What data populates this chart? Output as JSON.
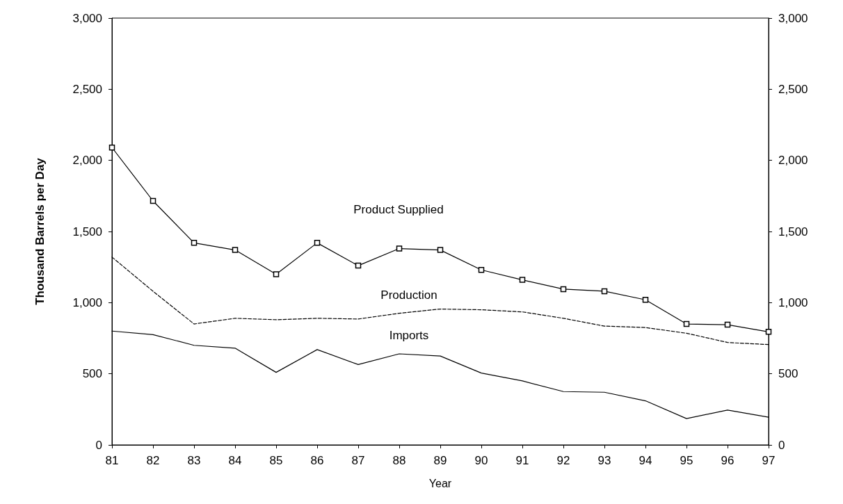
{
  "chart_data": {
    "type": "line",
    "xlabel": "Year",
    "ylabel": "Thousand Barrels per Day",
    "categories": [
      "81",
      "82",
      "83",
      "84",
      "85",
      "86",
      "87",
      "88",
      "89",
      "90",
      "91",
      "92",
      "93",
      "94",
      "95",
      "96",
      "97"
    ],
    "series": [
      {
        "name": "Product Supplied",
        "color": "#000000",
        "marker": "square",
        "line_style": "solid",
        "values": [
          2090,
          1715,
          1420,
          1370,
          1200,
          1420,
          1260,
          1380,
          1370,
          1230,
          1160,
          1095,
          1080,
          1020,
          850,
          845,
          795
        ]
      },
      {
        "name": "Production",
        "color": "#000000",
        "marker": "none",
        "line_style": "dashed",
        "values": [
          1320,
          1080,
          850,
          890,
          880,
          890,
          885,
          925,
          955,
          950,
          935,
          890,
          835,
          825,
          785,
          720,
          705
        ]
      },
      {
        "name": "Imports",
        "color": "#000000",
        "marker": "none",
        "line_style": "solid",
        "values": [
          800,
          775,
          700,
          680,
          510,
          670,
          565,
          640,
          625,
          505,
          450,
          375,
          370,
          310,
          185,
          245,
          195
        ]
      }
    ],
    "ylim": [
      0,
      3000
    ],
    "yticks": [
      0,
      500,
      {
        "value": 1000,
        "label": "1,000"
      },
      {
        "value": 1500,
        "label": "1,500"
      },
      {
        "value": 2000,
        "label": "2,000"
      },
      {
        "value": 2500,
        "label": "2,500"
      },
      {
        "value": 3000,
        "label": "3,000"
      }
    ],
    "y2lim": [
      0,
      3000
    ],
    "y2ticks": [
      0,
      500,
      {
        "value": 1000,
        "label": "1,000"
      },
      {
        "value": 1500,
        "label": "1,500"
      },
      {
        "value": 2000,
        "label": "2,000"
      },
      {
        "value": 2500,
        "label": "2,500"
      },
      {
        "value": 3000,
        "label": "3,000"
      }
    ],
    "grid": false
  }
}
